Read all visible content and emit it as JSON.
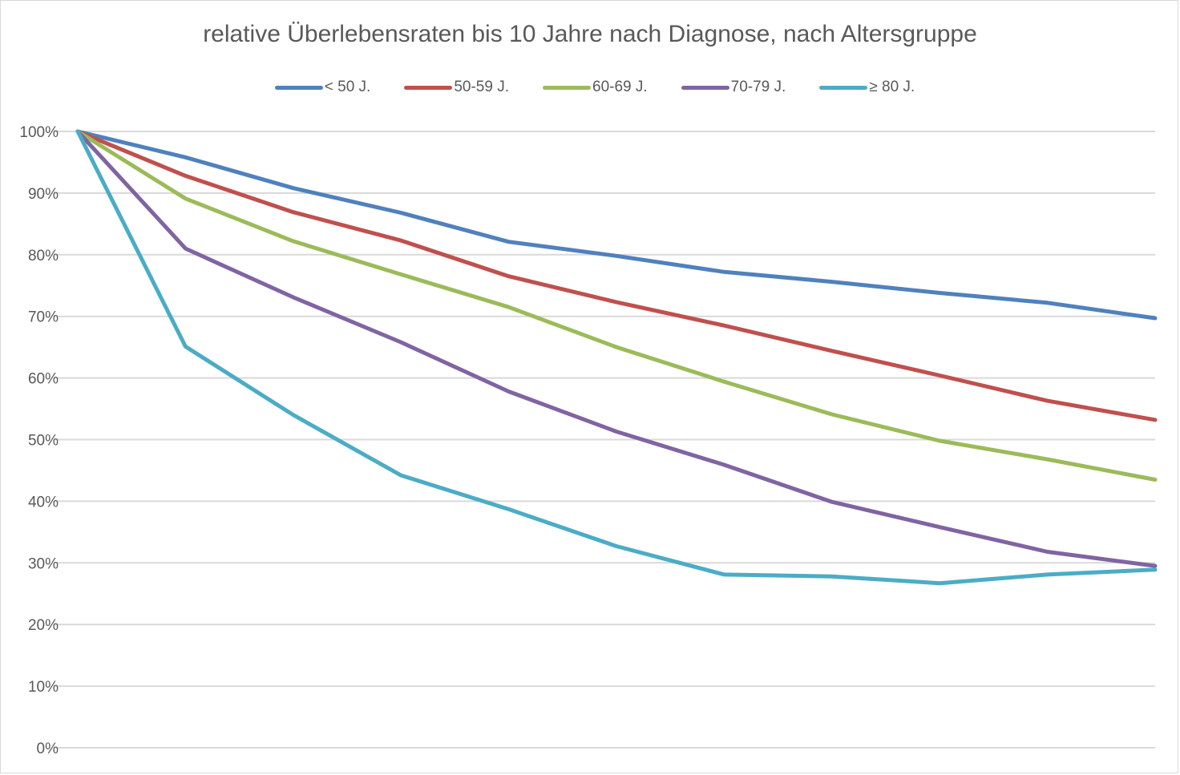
{
  "chart_data": {
    "type": "line",
    "title": "relative Überlebensraten bis 10 Jahre nach Diagnose, nach Altersgruppe",
    "xlabel": "",
    "ylabel": "",
    "x": [
      0,
      1,
      2,
      3,
      4,
      5,
      6,
      7,
      8,
      9,
      10
    ],
    "ylim": [
      0,
      100
    ],
    "yticks": [
      "0%",
      "10%",
      "20%",
      "30%",
      "40%",
      "50%",
      "60%",
      "70%",
      "80%",
      "90%",
      "100%"
    ],
    "ytick_values": [
      0,
      10,
      20,
      30,
      40,
      50,
      60,
      70,
      80,
      90,
      100
    ],
    "grid": true,
    "legend_position": "top",
    "series": [
      {
        "name": "< 50 J.",
        "color": "#4f81bd",
        "values": [
          100,
          95.8,
          90.8,
          86.8,
          82.1,
          79.8,
          77.2,
          75.6,
          73.8,
          72.2,
          69.7
        ]
      },
      {
        "name": "50-59 J.",
        "color": "#c0504d",
        "values": [
          100,
          92.8,
          86.9,
          82.3,
          76.5,
          72.3,
          68.5,
          64.4,
          60.4,
          56.3,
          53.2
        ]
      },
      {
        "name": "60-69 J.",
        "color": "#9bbb59",
        "values": [
          100,
          89.1,
          82.2,
          76.8,
          71.5,
          65.0,
          59.4,
          54.1,
          49.8,
          46.8,
          43.5
        ]
      },
      {
        "name": "70-79 J.",
        "color": "#8064a2",
        "values": [
          100,
          81.0,
          73.1,
          65.8,
          57.8,
          51.3,
          45.9,
          39.9,
          35.8,
          31.8,
          29.5
        ]
      },
      {
        "name": "≥ 80 J.",
        "color": "#4bacc6",
        "values": [
          100,
          65.1,
          54.0,
          44.2,
          38.7,
          32.7,
          28.1,
          27.8,
          26.7,
          28.1,
          28.9
        ]
      }
    ]
  }
}
